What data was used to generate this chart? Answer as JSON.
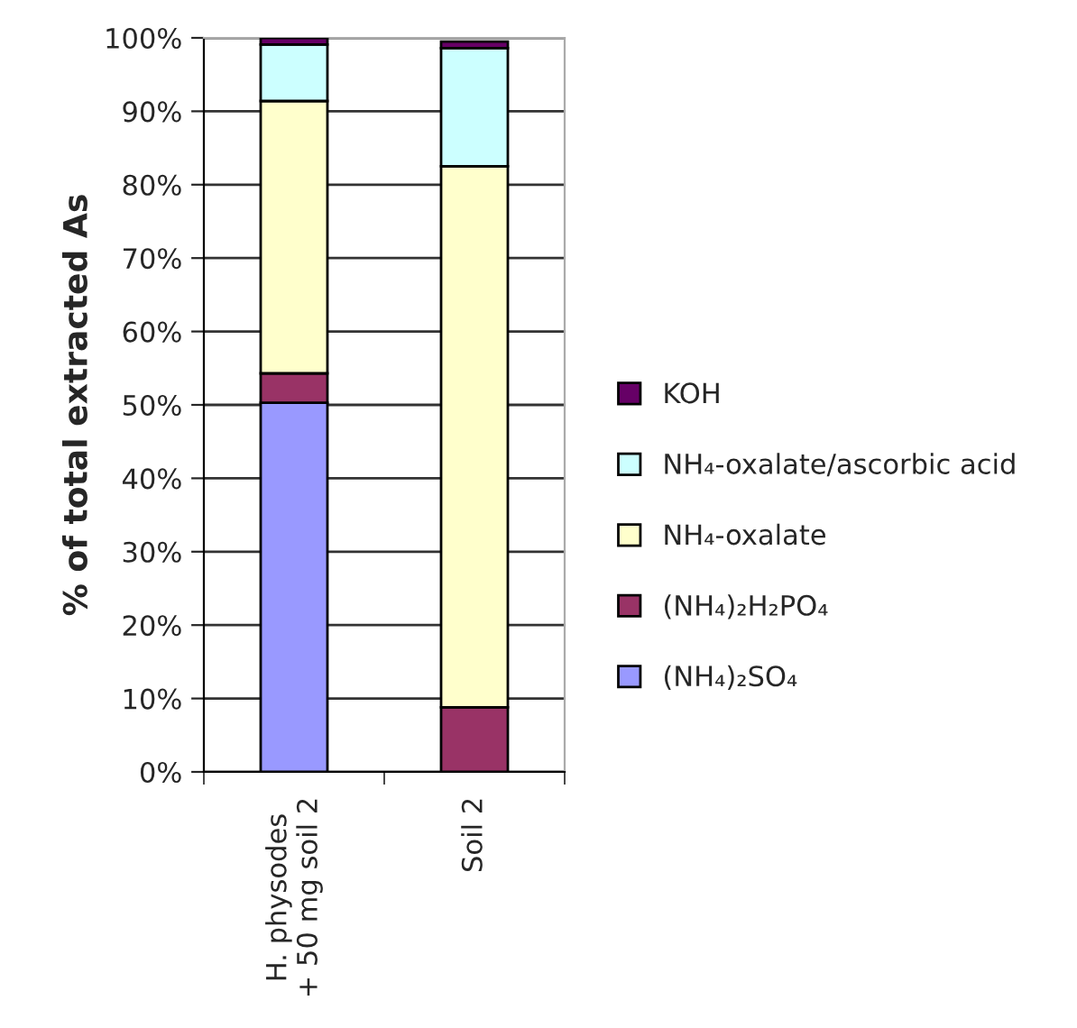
{
  "chart_data": {
    "type": "bar",
    "stacked": true,
    "ylabel": "% of total extracted As",
    "categories": [
      "H. physodes\n+ 50 mg soil 2",
      "Soil 2"
    ],
    "series": [
      {
        "name": "(NH₄)₂SO₄",
        "color": "#9999ff",
        "values": [
          50.3,
          null
        ]
      },
      {
        "name": "(NH₄)₂H₂PO₄",
        "color": "#993366",
        "values": [
          4.0,
          8.8
        ]
      },
      {
        "name": "NH₄-oxalate",
        "color": "#ffffcc",
        "values": [
          37.1,
          73.7
        ]
      },
      {
        "name": "NH₄-oxalate/ascorbic acid",
        "color": "#ccffff",
        "values": [
          7.7,
          16.1
        ]
      },
      {
        "name": "KOH",
        "color": "#660066",
        "values": [
          0.9,
          0.9
        ]
      }
    ],
    "ylim": [
      0,
      100
    ],
    "yticks": [
      {
        "value": 0,
        "label": "0%"
      },
      {
        "value": 10,
        "label": "10%"
      },
      {
        "value": 20,
        "label": "20%"
      },
      {
        "value": 30,
        "label": "30%"
      },
      {
        "value": 40,
        "label": "40%"
      },
      {
        "value": 50,
        "label": "50%"
      },
      {
        "value": 60,
        "label": "60%"
      },
      {
        "value": 70,
        "label": "70%"
      },
      {
        "value": 80,
        "label": "80%"
      },
      {
        "value": 90,
        "label": "90%"
      },
      {
        "value": 100,
        "label": "100%"
      }
    ],
    "grid": "y",
    "legend": "right"
  }
}
